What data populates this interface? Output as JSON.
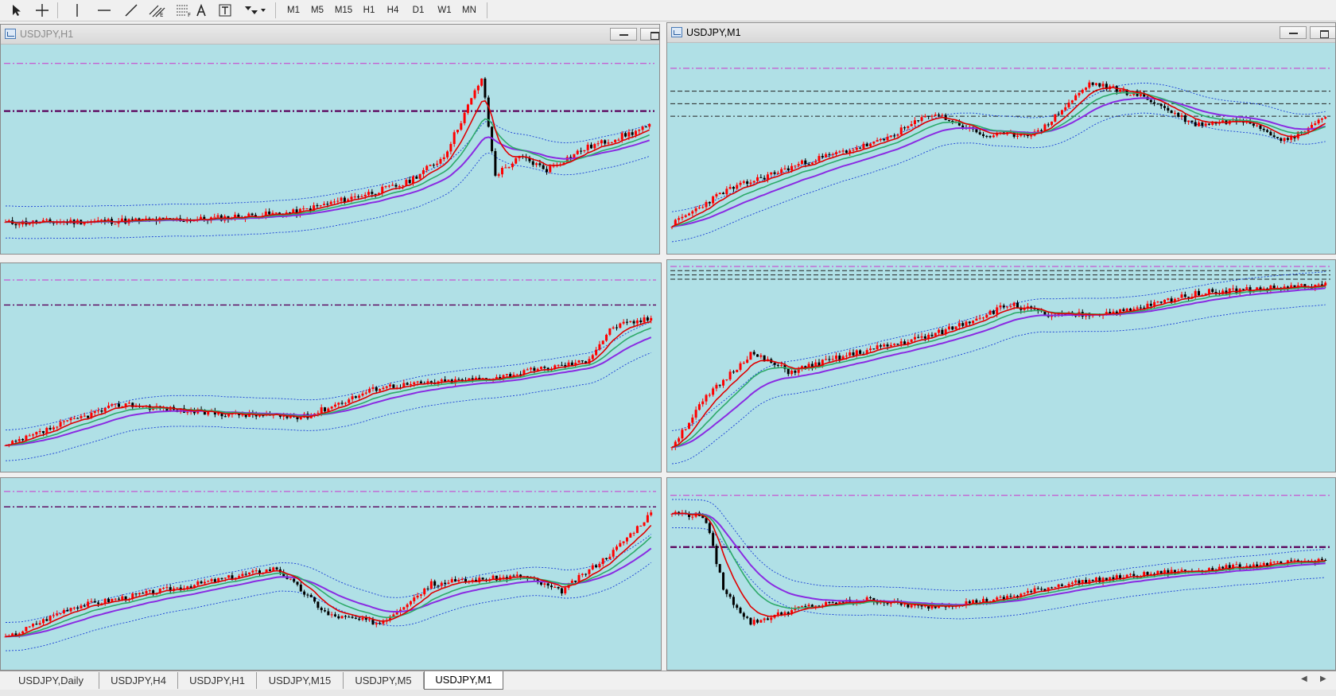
{
  "toolbar": {
    "timeframes": [
      "M1",
      "M5",
      "M15",
      "H1",
      "H4",
      "D1",
      "W1",
      "MN"
    ]
  },
  "windows": [
    {
      "id": "w1",
      "title": "USDJPY,H1",
      "active": false
    },
    {
      "id": "w2",
      "title": "USDJPY,M1",
      "active": true
    }
  ],
  "tabs": [
    {
      "label": "USDJPY,Daily",
      "active": false
    },
    {
      "label": "USDJPY,H4",
      "active": false
    },
    {
      "label": "USDJPY,H1",
      "active": false
    },
    {
      "label": "USDJPY,M15",
      "active": false
    },
    {
      "label": "USDJPY,M5",
      "active": false
    },
    {
      "label": "USDJPY,M1",
      "active": true
    }
  ],
  "colors": {
    "chart_bg": "#b0e0e6",
    "bull": "#ff0000",
    "bear": "#000000",
    "ma_fast": "#e00000",
    "ma_mid": "#2eaa6a",
    "ma_slow": "#8a2be2",
    "band": "#1a3fd6",
    "level_line": "#cc33cc",
    "level_dark": "#5a005a"
  }
}
